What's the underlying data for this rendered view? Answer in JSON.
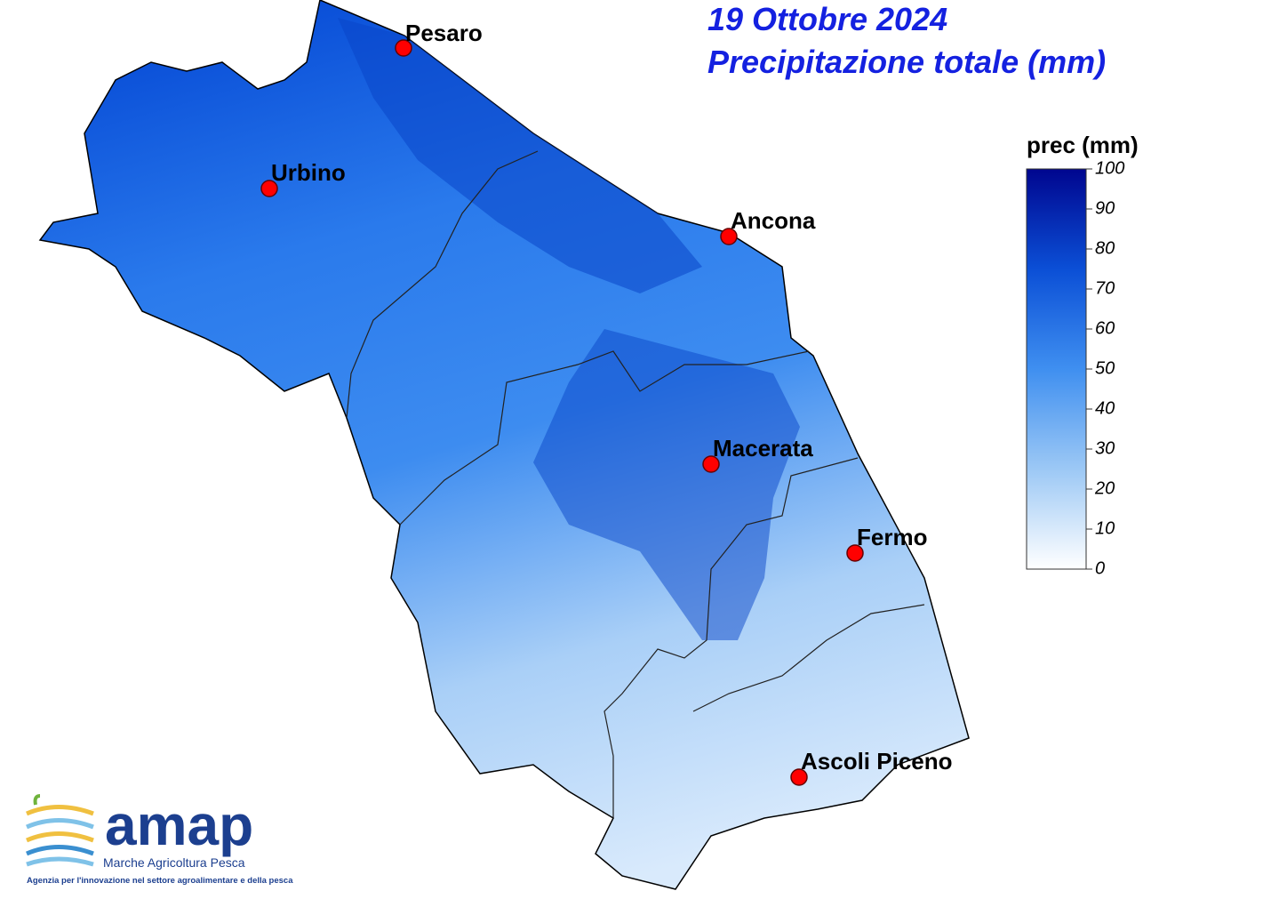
{
  "header": {
    "date": "19 Ottobre 2024",
    "title": "Precipitazione totale (mm)"
  },
  "cities": [
    "Pesaro",
    "Urbino",
    "Ancona",
    "Macerata",
    "Fermo",
    "Ascoli Piceno"
  ],
  "legend": {
    "title": "prec (mm)",
    "range": [
      0,
      100
    ],
    "ticks": [
      0,
      10,
      20,
      30,
      40,
      50,
      60,
      70,
      80,
      90,
      100
    ],
    "colors": [
      "#ffffff",
      "#9cc8f5",
      "#3f8ff0",
      "#0b4fd6",
      "#00068f"
    ]
  },
  "logo": {
    "name": "amap",
    "subtitle": "Marche Agricoltura Pesca",
    "tagline": "Agenzia per l'innovazione nel settore agroalimentare e della pesca"
  }
}
